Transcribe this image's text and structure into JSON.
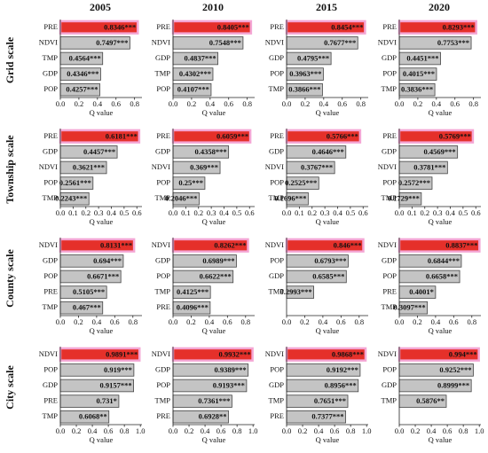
{
  "years": [
    "2005",
    "2010",
    "2015",
    "2020"
  ],
  "scales": [
    "Grid scale",
    "Township scale",
    "County scale",
    "City scale"
  ],
  "chart_data": [
    {
      "type": "bar",
      "xlabel": "Q value",
      "categories": [
        "PRE",
        "NDVI",
        "TMP",
        "GDP",
        "POP"
      ],
      "values": [
        0.8346,
        0.7497,
        0.4564,
        0.4346,
        0.4257
      ],
      "value_labels": [
        "0.8346***",
        "0.7497***",
        "0.4564***",
        "0.4346***",
        "0.4257***"
      ],
      "xlim": [
        0,
        0.88
      ],
      "xticks": [
        {
          "value": 0,
          "label": "0.0"
        },
        0.2,
        0.4,
        0.6,
        0.8
      ],
      "color": "#c4c4c4",
      "highlight_color": "#e5302a"
    },
    {
      "type": "bar",
      "xlabel": "Q value",
      "categories": [
        "PRE",
        "NDVI",
        "GDP",
        "TMP",
        "POP"
      ],
      "values": [
        0.8405,
        0.7548,
        0.4837,
        0.4302,
        0.4107
      ],
      "value_labels": [
        "0.8405***",
        "0.7548***",
        "0.4837***",
        "0.4302***",
        "0.4107***"
      ],
      "xlim": [
        0,
        0.88
      ],
      "xticks": [
        {
          "value": 0,
          "label": "0.0"
        },
        0.2,
        0.4,
        0.6,
        0.8
      ],
      "color": "#c4c4c4",
      "highlight_color": "#e5302a"
    },
    {
      "type": "bar",
      "xlabel": "Q value",
      "categories": [
        "PRE",
        "NDVI",
        "GDP",
        "POP",
        "TMP"
      ],
      "values": [
        0.8454,
        0.7677,
        0.4795,
        0.3963,
        0.3866
      ],
      "value_labels": [
        "0.8454***",
        "0.7677***",
        "0.4795***",
        "0.3963***",
        "0.3866***"
      ],
      "xlim": [
        0,
        0.88
      ],
      "xticks": [
        {
          "value": 0,
          "label": "0.0"
        },
        0.2,
        0.4,
        0.6,
        0.8
      ],
      "color": "#c4c4c4",
      "highlight_color": "#e5302a"
    },
    {
      "type": "bar",
      "xlabel": "Q value",
      "categories": [
        "PRE",
        "NDVI",
        "GDP",
        "POP",
        "TMP"
      ],
      "values": [
        0.8293,
        0.7753,
        0.4451,
        0.4015,
        0.3836
      ],
      "value_labels": [
        "0.8293***",
        "0.7753***",
        "0.4451***",
        "0.4015***",
        "0.3836***"
      ],
      "xlim": [
        0,
        0.88
      ],
      "xticks": [
        {
          "value": 0,
          "label": "0.0"
        },
        0.2,
        0.4,
        0.6,
        0.8
      ],
      "color": "#c4c4c4",
      "highlight_color": "#e5302a"
    },
    {
      "type": "bar",
      "xlabel": "Q value",
      "categories": [
        "PRE",
        "GDP",
        "NDVI",
        "POP",
        "TMP"
      ],
      "values": [
        0.6181,
        0.4457,
        0.3621,
        0.2561,
        0.2243
      ],
      "value_labels": [
        "0.6181***",
        "0.4457***",
        "0.3621***",
        "0.2561***",
        "0.2243***"
      ],
      "xlim": [
        0,
        0.64
      ],
      "xticks": [
        {
          "value": 0,
          "label": "0.0"
        },
        0.1,
        0.2,
        0.3,
        0.4,
        0.5,
        0.6
      ],
      "color": "#c4c4c4",
      "highlight_color": "#e5302a"
    },
    {
      "type": "bar",
      "xlabel": "Q value",
      "categories": [
        "PRE",
        "GDP",
        "NDVI",
        "POP",
        "TMP"
      ],
      "values": [
        0.6059,
        0.4358,
        0.369,
        0.25,
        0.2046
      ],
      "value_labels": [
        "0.6059***",
        "0.4358***",
        "0.369***",
        "0.25***",
        "0.2046***"
      ],
      "xlim": [
        0,
        0.64
      ],
      "xticks": [
        {
          "value": 0,
          "label": "0.0"
        },
        0.1,
        0.2,
        0.3,
        0.4,
        0.5,
        0.6
      ],
      "color": "#c4c4c4",
      "highlight_color": "#e5302a"
    },
    {
      "type": "bar",
      "xlabel": "Q value",
      "categories": [
        "PRE",
        "GDP",
        "NDVI",
        "POP",
        "TMP"
      ],
      "values": [
        0.5766,
        0.4646,
        0.3767,
        0.2525,
        0.1696
      ],
      "value_labels": [
        "0.5766***",
        "0.4646***",
        "0.3767***",
        "0.2525***",
        "0.1696***"
      ],
      "xlim": [
        0,
        0.64
      ],
      "xticks": [
        {
          "value": 0,
          "label": "0.0"
        },
        0.1,
        0.2,
        0.3,
        0.4,
        0.5,
        0.6
      ],
      "color": "#c4c4c4",
      "highlight_color": "#e5302a"
    },
    {
      "type": "bar",
      "xlabel": "Q value",
      "categories": [
        "PRE",
        "GDP",
        "NDVI",
        "POP",
        "TMP"
      ],
      "values": [
        0.5769,
        0.4569,
        0.3781,
        0.2572,
        0.1729
      ],
      "value_labels": [
        "0.5769***",
        "0.4569***",
        "0.3781***",
        "0.2572***",
        "0.1729***"
      ],
      "xlim": [
        0,
        0.64
      ],
      "xticks": [
        {
          "value": 0,
          "label": "0.0"
        },
        0.1,
        0.2,
        0.3,
        0.4,
        0.5,
        0.6
      ],
      "color": "#c4c4c4",
      "highlight_color": "#e5302a"
    },
    {
      "type": "bar",
      "xlabel": "Q value",
      "categories": [
        "NDVI",
        "GDP",
        "POP",
        "PRE",
        "TMP"
      ],
      "values": [
        0.8131,
        0.694,
        0.6671,
        0.5105,
        0.467
      ],
      "value_labels": [
        "0.8131***",
        "0.694***",
        "0.6671***",
        "0.5105***",
        "0.467***"
      ],
      "xlim": [
        0,
        0.9
      ],
      "xticks": [
        {
          "value": 0,
          "label": "0.0"
        },
        0.2,
        0.4,
        0.6,
        0.8
      ],
      "color": "#c4c4c4",
      "highlight_color": "#e5302a"
    },
    {
      "type": "bar",
      "xlabel": "Q value",
      "categories": [
        "NDVI",
        "GDP",
        "POP",
        "TMP",
        "PRE"
      ],
      "values": [
        0.8262,
        0.6989,
        0.6622,
        0.4125,
        0.4096
      ],
      "value_labels": [
        "0.8262***",
        "0.6989***",
        "0.6622***",
        "0.4125***",
        "0.4096***"
      ],
      "xlim": [
        0,
        0.9
      ],
      "xticks": [
        {
          "value": 0,
          "label": "0.0"
        },
        0.2,
        0.4,
        0.6,
        0.8
      ],
      "color": "#c4c4c4",
      "highlight_color": "#e5302a"
    },
    {
      "type": "bar",
      "xlabel": "Q value",
      "categories": [
        "NDVI",
        "POP",
        "GDP",
        "TMP"
      ],
      "values": [
        0.846,
        0.6793,
        0.6585,
        0.2993
      ],
      "value_labels": [
        "0.846***",
        "0.6793***",
        "0.6585***",
        "0.2993***"
      ],
      "xlim": [
        0,
        0.9
      ],
      "xticks": [
        {
          "value": 0,
          "label": "0.0"
        },
        0.2,
        0.4,
        0.6,
        0.8
      ],
      "color": "#c4c4c4",
      "highlight_color": "#e5302a"
    },
    {
      "type": "bar",
      "xlabel": "Q value",
      "categories": [
        "NDVI",
        "GDP",
        "POP",
        "PRE",
        "TMP"
      ],
      "values": [
        0.8837,
        0.6844,
        0.6658,
        0.4001,
        0.3097
      ],
      "value_labels": [
        "0.8837***",
        "0.6844***",
        "0.6658***",
        "0.4001*",
        "0.3097***"
      ],
      "xlim": [
        0,
        0.9
      ],
      "xticks": [
        {
          "value": 0,
          "label": "0.0"
        },
        0.2,
        0.4,
        0.6,
        0.8
      ],
      "color": "#c4c4c4",
      "highlight_color": "#e5302a"
    },
    {
      "type": "bar",
      "xlabel": "Q value",
      "categories": [
        "NDVI",
        "POP",
        "GDP",
        "PRE",
        "TMP"
      ],
      "values": [
        0.9891,
        0.919,
        0.9157,
        0.731,
        0.6068
      ],
      "value_labels": [
        "0.9891***",
        "0.919***",
        "0.9157***",
        "0.731*",
        "0.6068**"
      ],
      "xlim": [
        0,
        1.02
      ],
      "xticks": [
        {
          "value": 0,
          "label": "0.0"
        },
        0.2,
        0.4,
        0.6,
        0.8,
        {
          "value": 1,
          "label": "1.0"
        }
      ],
      "color": "#c4c4c4",
      "highlight_color": "#e5302a"
    },
    {
      "type": "bar",
      "xlabel": "Q value",
      "categories": [
        "NDVI",
        "GDP",
        "POP",
        "TMP",
        "PRE"
      ],
      "values": [
        0.9932,
        0.9389,
        0.9193,
        0.7361,
        0.6928
      ],
      "value_labels": [
        "0.9932***",
        "0.9389***",
        "0.9193***",
        "0.7361***",
        "0.6928**"
      ],
      "xlim": [
        0,
        1.02
      ],
      "xticks": [
        {
          "value": 0,
          "label": "0.0"
        },
        0.2,
        0.4,
        0.6,
        0.8,
        {
          "value": 1,
          "label": "1.0"
        }
      ],
      "color": "#c4c4c4",
      "highlight_color": "#e5302a"
    },
    {
      "type": "bar",
      "xlabel": "Q value",
      "categories": [
        "NDVI",
        "POP",
        "GDP",
        "TMP",
        "PRE"
      ],
      "values": [
        0.9868,
        0.9192,
        0.8956,
        0.7651,
        0.7377
      ],
      "value_labels": [
        "0.9868***",
        "0.9192***",
        "0.8956***",
        "0.7651***",
        "0.7377***"
      ],
      "xlim": [
        0,
        1.02
      ],
      "xticks": [
        {
          "value": 0,
          "label": "0.0"
        },
        0.2,
        0.4,
        0.6,
        0.8,
        {
          "value": 1,
          "label": "1.0"
        }
      ],
      "color": "#c4c4c4",
      "highlight_color": "#e5302a"
    },
    {
      "type": "bar",
      "xlabel": "Q value",
      "categories": [
        "NDVI",
        "POP",
        "GDP",
        "TMP"
      ],
      "values": [
        0.994,
        0.9252,
        0.8999,
        0.5876
      ],
      "value_labels": [
        "0.994***",
        "0.9252***",
        "0.8999***",
        "0.5876**"
      ],
      "xlim": [
        0,
        1.02
      ],
      "xticks": [
        {
          "value": 0,
          "label": "0.0"
        },
        0.2,
        0.4,
        0.6,
        0.8,
        {
          "value": 1,
          "label": "1.0"
        }
      ],
      "color": "#c4c4c4",
      "highlight_color": "#e5302a"
    }
  ]
}
